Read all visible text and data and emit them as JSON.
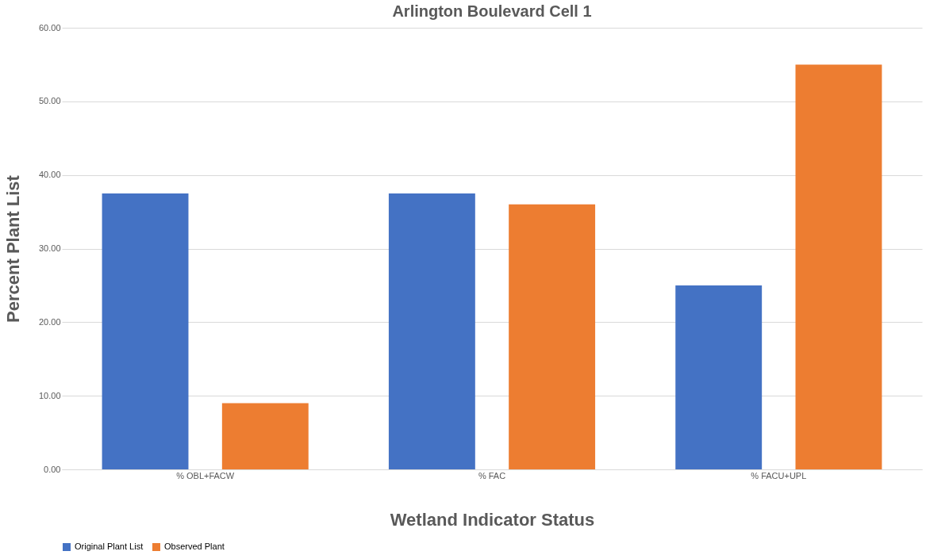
{
  "chart_data": {
    "type": "bar",
    "title": "Arlington Boulevard Cell 1",
    "xlabel": "Wetland Indicator Status",
    "ylabel": "Percent Plant List",
    "categories": [
      "% OBL+FACW",
      "% FAC",
      "% FACU+UPL"
    ],
    "series": [
      {
        "name": "Original Plant List",
        "color": "#4472c4",
        "values": [
          37.5,
          37.5,
          25
        ]
      },
      {
        "name": "Observed Plant",
        "color": "#ed7d31",
        "values": [
          9,
          36,
          55
        ]
      }
    ],
    "ylim": [
      0,
      60
    ],
    "yticks": [
      {
        "value": 0,
        "label": "0.00"
      },
      {
        "value": 10,
        "label": "10.00"
      },
      {
        "value": 20,
        "label": "20.00"
      },
      {
        "value": 30,
        "label": "30.00"
      },
      {
        "value": 40,
        "label": "40.00"
      },
      {
        "value": 50,
        "label": "50.00"
      },
      {
        "value": 60,
        "label": "60.00"
      }
    ],
    "grid": "y",
    "legend": "bottom"
  }
}
